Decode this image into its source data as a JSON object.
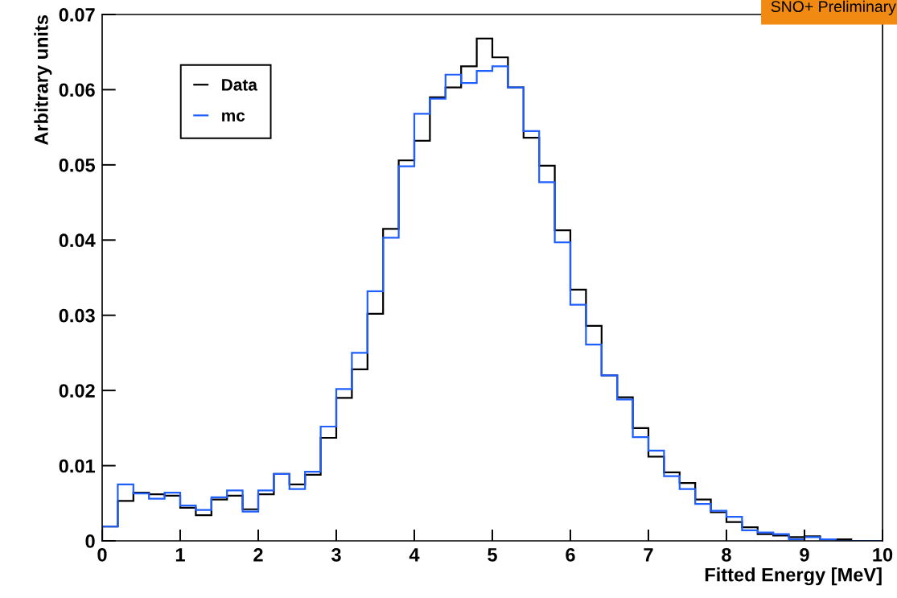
{
  "chart_data": {
    "type": "histogram",
    "xlabel": "Fitted Energy [MeV]",
    "ylabel": "Arbitrary units",
    "annotations": [
      "SNO+ Preliminary"
    ],
    "bins": [
      0,
      0.2,
      0.4,
      0.6,
      0.8,
      1,
      1.2,
      1.4,
      1.6,
      1.8,
      2,
      2.2,
      2.4,
      2.6,
      2.8,
      3,
      3.2,
      3.4,
      3.6,
      3.8,
      4,
      4.2,
      4.4,
      4.6,
      4.8,
      5,
      5.2,
      5.4,
      5.6,
      5.8,
      6,
      6.2,
      6.4,
      6.6,
      6.8,
      7,
      7.2,
      7.4,
      7.6,
      7.8,
      8,
      8.2,
      8.4,
      8.6,
      8.8,
      9,
      9.2,
      9.4,
      9.6,
      9.8,
      10
    ],
    "series": [
      {
        "name": "Data",
        "color": "#000000",
        "values": [
          0.0019,
          0.0053,
          0.0064,
          0.0062,
          0.006,
          0.0044,
          0.0034,
          0.0055,
          0.006,
          0.0042,
          0.0062,
          0.0089,
          0.0075,
          0.0088,
          0.0137,
          0.019,
          0.0228,
          0.0302,
          0.0415,
          0.0506,
          0.0532,
          0.059,
          0.0603,
          0.0631,
          0.0668,
          0.0643,
          0.0603,
          0.0536,
          0.0499,
          0.0413,
          0.0334,
          0.0286,
          0.022,
          0.0191,
          0.015,
          0.0112,
          0.0091,
          0.0077,
          0.0055,
          0.0038,
          0.0025,
          0.0018,
          0.0009,
          0.0007,
          0.0005,
          0.0006,
          0.0002,
          0.0002,
          0,
          0
        ]
      },
      {
        "name": "mc",
        "color": "#1f5fff",
        "values": [
          0.0019,
          0.0075,
          0.0063,
          0.0056,
          0.0064,
          0.0047,
          0.0041,
          0.0058,
          0.0067,
          0.0039,
          0.0067,
          0.0089,
          0.0069,
          0.0092,
          0.0152,
          0.0202,
          0.025,
          0.0332,
          0.0403,
          0.0498,
          0.0568,
          0.0588,
          0.062,
          0.0609,
          0.0625,
          0.0631,
          0.0603,
          0.0545,
          0.0477,
          0.0397,
          0.0314,
          0.0261,
          0.022,
          0.0188,
          0.0138,
          0.012,
          0.0086,
          0.0069,
          0.0049,
          0.004,
          0.0032,
          0.0014,
          0.0011,
          0.0009,
          0.0002,
          0.0005,
          0.0002,
          0,
          0,
          0
        ]
      }
    ],
    "xlim": [
      0,
      10
    ],
    "xticks": [
      0,
      1,
      2,
      3,
      4,
      5,
      6,
      7,
      8,
      9,
      10
    ],
    "ylim": [
      0,
      0.07
    ],
    "yticks": [
      0,
      0.01,
      0.02,
      0.03,
      0.04,
      0.05,
      0.06,
      0.07
    ],
    "grid": false,
    "legend": "top left"
  }
}
